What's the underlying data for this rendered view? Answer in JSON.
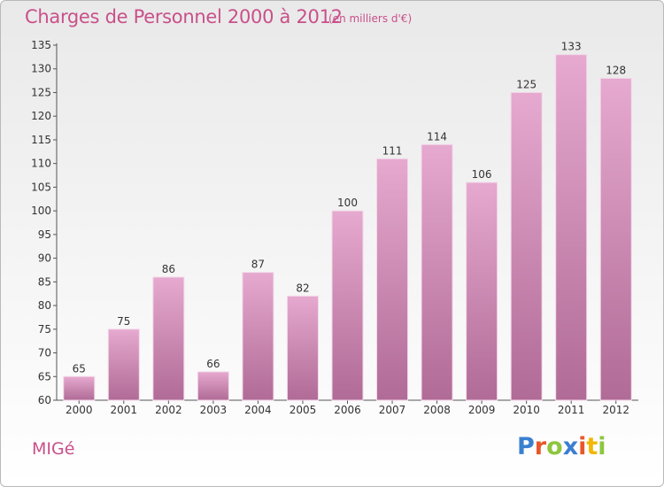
{
  "header": {
    "title": "Charges de Personnel 2000 à 2012",
    "subtitle": "(en milliers d'€)"
  },
  "footer": {
    "commune": "MIGé",
    "logo_text": "Proxiti",
    "logo_colors": [
      "#3b7fd0",
      "#e8572a",
      "#8dc63f",
      "#3b7fd0",
      "#e8572a",
      "#f2b705",
      "#8dc63f"
    ]
  },
  "colors": {
    "bar_top": "#e6a9cf",
    "bar_bottom": "#b06b96",
    "title": "#c9508a"
  },
  "chart_data": {
    "type": "bar",
    "categories": [
      "2000",
      "2001",
      "2002",
      "2003",
      "2004",
      "2005",
      "2006",
      "2007",
      "2008",
      "2009",
      "2010",
      "2011",
      "2012"
    ],
    "values": [
      65,
      75,
      86,
      66,
      87,
      82,
      100,
      111,
      114,
      106,
      125,
      133,
      128
    ],
    "title": "Charges de Personnel 2000 à 2012",
    "ylim": [
      60,
      135
    ],
    "yticks": [
      60,
      65,
      70,
      75,
      80,
      85,
      90,
      95,
      100,
      105,
      110,
      115,
      120,
      125,
      130,
      135
    ],
    "grid": false,
    "data_labels": true
  }
}
